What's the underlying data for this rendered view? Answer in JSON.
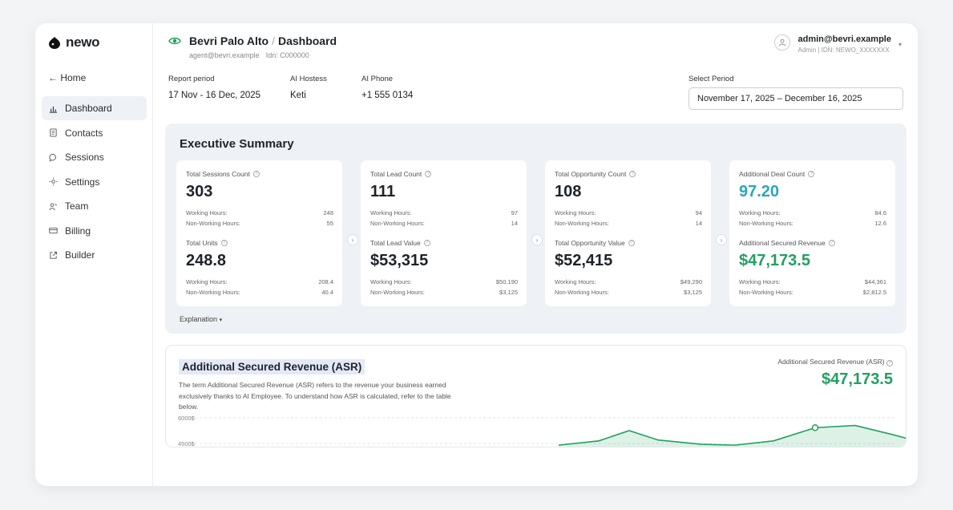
{
  "brand": {
    "name": "newo"
  },
  "nav": {
    "home": "← Home",
    "items": [
      {
        "label": "Dashboard",
        "icon": "bar-chart-icon",
        "active": true
      },
      {
        "label": "Contacts",
        "icon": "document-icon"
      },
      {
        "label": "Sessions",
        "icon": "chat-bubble-icon"
      },
      {
        "label": "Settings",
        "icon": "gear-icon"
      },
      {
        "label": "Team",
        "icon": "users-icon"
      },
      {
        "label": "Billing",
        "icon": "credit-card-icon"
      },
      {
        "label": "Builder",
        "icon": "external-link-icon"
      }
    ]
  },
  "header": {
    "org": "Bevri Palo Alto",
    "separator": "/",
    "page": "Dashboard",
    "email": "agent@bevri.example",
    "idn": "Idn: C000000"
  },
  "user": {
    "name": "admin@bevri.example",
    "sub": "Admin | IDN: NEWO_XXXXXXX"
  },
  "info": [
    {
      "label": "Report period",
      "value": "17 Nov - 16 Dec, 2025"
    },
    {
      "label": "AI Hostess",
      "value": "Keti"
    },
    {
      "label": "AI Phone",
      "value": "+1 555 0134"
    }
  ],
  "period": {
    "label": "Select Period",
    "value": "November 17, 2025 – December 16, 2025"
  },
  "exec": {
    "title": "Executive Summary",
    "explanation": "Explanation",
    "cards": [
      {
        "top": {
          "label": "Total Sessions Count",
          "value": "303",
          "rows": [
            [
              "Working Hours:",
              "248"
            ],
            [
              "Non-Working Hours:",
              "55"
            ]
          ]
        },
        "bottom": {
          "label": "Total Units",
          "value": "248.8",
          "rows": [
            [
              "Working Hours:",
              "208.4"
            ],
            [
              "Non-Working Hours:",
              "40.4"
            ]
          ]
        }
      },
      {
        "top": {
          "label": "Total Lead Count",
          "value": "111",
          "rows": [
            [
              "Working Hours:",
              "97"
            ],
            [
              "Non-Working Hours:",
              "14"
            ]
          ]
        },
        "bottom": {
          "label": "Total Lead Value",
          "value": "$53,315",
          "rows": [
            [
              "Working Hours:",
              "$50,190"
            ],
            [
              "Non-Working Hours:",
              "$3,125"
            ]
          ]
        }
      },
      {
        "top": {
          "label": "Total Opportunity Count",
          "value": "108",
          "rows": [
            [
              "Working Hours:",
              "94"
            ],
            [
              "Non-Working Hours:",
              "14"
            ]
          ]
        },
        "bottom": {
          "label": "Total Opportunity Value",
          "value": "$52,415",
          "rows": [
            [
              "Working Hours:",
              "$49,290"
            ],
            [
              "Non-Working Hours:",
              "$3,125"
            ]
          ]
        }
      },
      {
        "top": {
          "label": "Additional Deal Count",
          "value": "97.20",
          "rows": [
            [
              "Working Hours:",
              "84.6"
            ],
            [
              "Non-Working Hours:",
              "12.6"
            ]
          ]
        },
        "bottom": {
          "label": "Additional Secured Revenue",
          "value": "$47,173.5",
          "rows": [
            [
              "Working Hours:",
              "$44,361"
            ],
            [
              "Non-Working Hours:",
              "$2,812.5"
            ]
          ]
        }
      }
    ]
  },
  "asr": {
    "title": "Additional Secured Revenue (ASR)",
    "description": "The term Additional Secured Revenue (ASR) refers to the revenue your business earned exclusively thanks to AI Employee. To understand how ASR is calculated, refer to the table below.",
    "right_label": "Additional Secured Revenue (ASR)",
    "right_value": "$47,173.5"
  },
  "chart_data": {
    "type": "area",
    "y_ticks": [
      "6000$",
      "4500$"
    ],
    "ylim": [
      4500,
      6000
    ],
    "color": "#22a05f",
    "x": [
      0,
      1,
      2,
      3,
      4,
      5,
      6,
      7,
      8,
      9,
      10
    ],
    "values": [
      4400,
      4650,
      5250,
      4700,
      4450,
      4400,
      4650,
      5420,
      5550,
      5000,
      4350
    ],
    "highlighted_index": 7
  }
}
